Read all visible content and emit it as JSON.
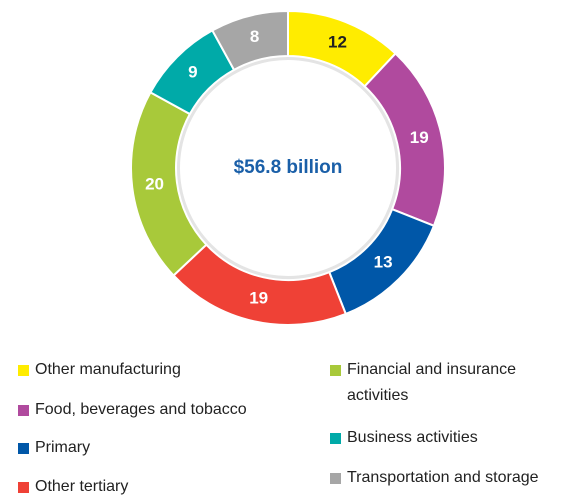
{
  "chart_data": {
    "type": "donut",
    "center_text": "$56.8 billion",
    "categories": [
      "Other manufacturing",
      "Food, beverages and tobacco",
      "Primary",
      "Other tertiary",
      "Financial and insurance activities",
      "Business activities",
      "Transportation and storage"
    ],
    "values": [
      12,
      19,
      13,
      19,
      20,
      9,
      8
    ],
    "colors": [
      "#ffec00",
      "#b04a9e",
      "#0057a8",
      "#ef4136",
      "#a8c93a",
      "#00aaa8",
      "#a6a6a6"
    ]
  }
}
